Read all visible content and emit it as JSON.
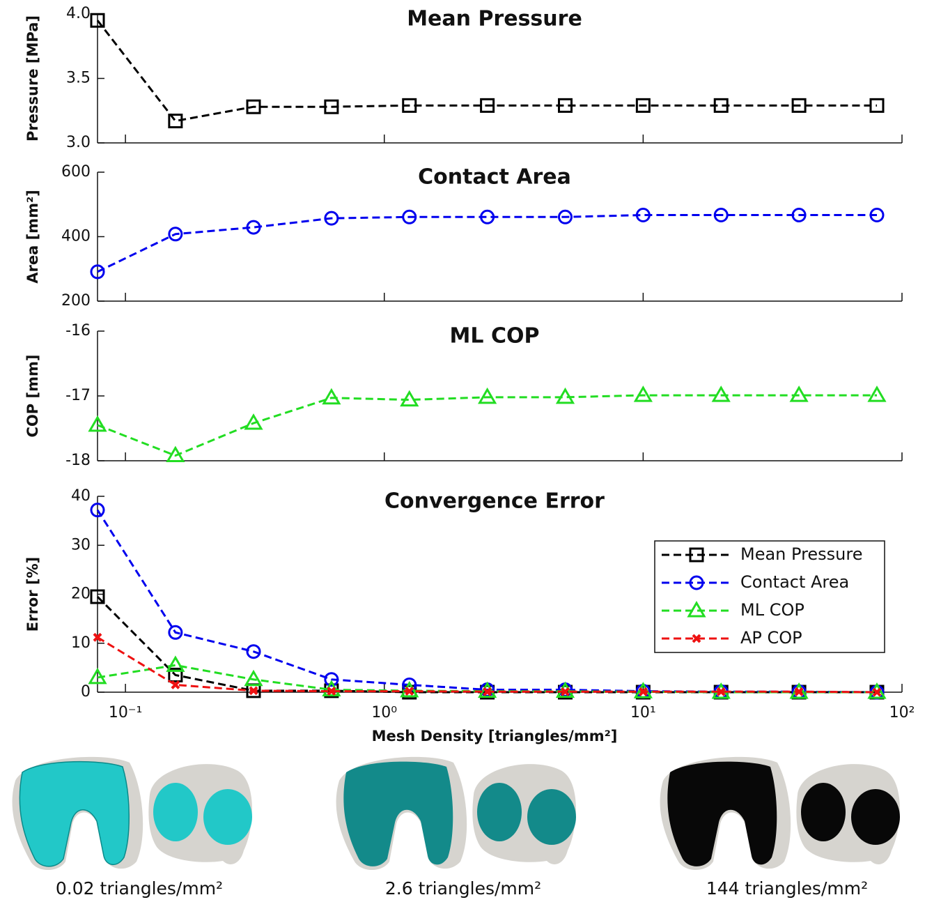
{
  "chart_data": [
    {
      "type": "line",
      "title": "Mean Pressure",
      "ylabel": "Pressure [MPa]",
      "x": [
        0.078,
        0.156,
        0.3125,
        0.625,
        1.25,
        2.5,
        5,
        10,
        20,
        40,
        80
      ],
      "xlim": [
        0.078,
        100
      ],
      "log_x": true,
      "xticks": [
        0.1,
        1,
        10,
        100
      ],
      "ylim": [
        3,
        4
      ],
      "yticks": [
        {
          "value": 3,
          "label": "3.0"
        },
        3.5,
        {
          "value": 4,
          "label": "4.0"
        }
      ],
      "grid": false,
      "series": [
        {
          "color": "#000000",
          "marker": "square",
          "values": [
            3.95,
            3.17,
            3.28,
            3.28,
            3.29,
            3.29,
            3.29,
            3.29,
            3.29,
            3.29,
            3.29
          ]
        }
      ]
    },
    {
      "type": "line",
      "title": "Contact Area",
      "ylabel": "Area [mm²]",
      "x": [
        0.078,
        0.156,
        0.3125,
        0.625,
        1.25,
        2.5,
        5,
        10,
        20,
        40,
        80
      ],
      "xlim": [
        0.078,
        100
      ],
      "log_x": true,
      "xticks": [
        0.1,
        1,
        10,
        100
      ],
      "ylim": [
        200,
        600
      ],
      "yticks": [
        200,
        400,
        600
      ],
      "grid": false,
      "series": [
        {
          "color": "#0000ee",
          "marker": "circle",
          "values": [
            291,
            408,
            429,
            457,
            461,
            461,
            461,
            467,
            467,
            467,
            467
          ]
        }
      ]
    },
    {
      "type": "line",
      "title": "ML COP",
      "ylabel": "COP [mm]",
      "x": [
        0.078,
        0.156,
        0.3125,
        0.625,
        1.25,
        2.5,
        5,
        10,
        20,
        40,
        80
      ],
      "xlim": [
        0.078,
        100
      ],
      "log_x": true,
      "xticks": [
        0.1,
        1,
        10,
        100
      ],
      "ylim": [
        -18,
        -16
      ],
      "yticks": [
        -18,
        -17,
        -16
      ],
      "grid": false,
      "series": [
        {
          "color": "#22dd22",
          "marker": "triangle",
          "values": [
            -17.45,
            -17.92,
            -17.42,
            -17.03,
            -17.06,
            -17.02,
            -17.02,
            -16.99,
            -16.99,
            -16.99,
            -16.99
          ]
        }
      ]
    },
    {
      "type": "line",
      "title": "Convergence Error",
      "ylabel": "Error [%]",
      "xlabel": "Mesh Density [triangles/mm²]",
      "x": [
        0.078,
        0.156,
        0.3125,
        0.625,
        1.25,
        2.5,
        5,
        10,
        20,
        40,
        80
      ],
      "xlim": [
        0.078,
        100
      ],
      "log_x": true,
      "xticks": [
        {
          "value": 0.1,
          "label": "10⁻¹"
        },
        {
          "value": 1,
          "label": "10⁰"
        },
        {
          "value": 10,
          "label": "10¹"
        },
        {
          "value": 100,
          "label": "10²"
        }
      ],
      "ylim": [
        0,
        40
      ],
      "yticks": [
        0,
        10,
        20,
        30,
        40
      ],
      "grid": false,
      "legend": "upper right",
      "series": [
        {
          "name": "Mean Pressure",
          "color": "#000000",
          "marker": "square",
          "values": [
            19.5,
            3.5,
            0.3,
            0.3,
            0,
            0,
            0,
            0,
            0,
            0,
            0
          ]
        },
        {
          "name": "Contact Area",
          "color": "#0000ee",
          "marker": "circle",
          "values": [
            37.2,
            12.2,
            8.3,
            2.6,
            1.5,
            0.5,
            0.5,
            0.2,
            0.1,
            0.1,
            0
          ]
        },
        {
          "name": "ML COP",
          "color": "#22dd22",
          "marker": "triangle",
          "values": [
            3,
            5.5,
            2.6,
            0.5,
            0.3,
            0.2,
            0.2,
            0.1,
            0,
            0,
            0
          ]
        },
        {
          "name": "AP COP",
          "color": "#ee1111",
          "marker": "x",
          "values": [
            11.2,
            1.5,
            0.3,
            0.2,
            0.2,
            0.1,
            0.1,
            0.1,
            0.1,
            0.1,
            0
          ]
        }
      ]
    }
  ],
  "images": [
    {
      "caption": "0.02 triangles/mm²"
    },
    {
      "caption": "2.6 triangles/mm²"
    },
    {
      "caption": "144 triangles/mm²"
    }
  ]
}
